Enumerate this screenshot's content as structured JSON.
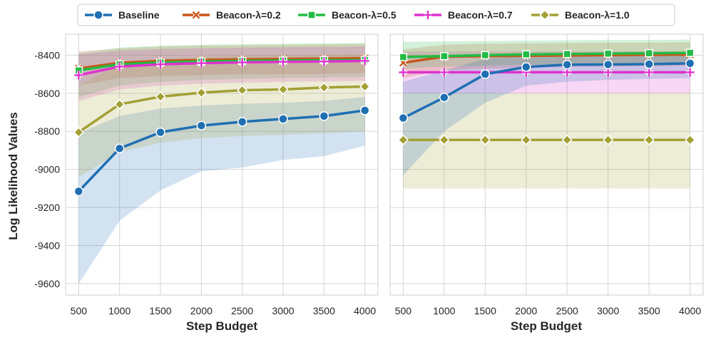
{
  "chart_data": {
    "type": "line",
    "ylabel": "Log Likelihood Values",
    "xlabel": "Step Budget",
    "x": [
      500,
      1000,
      1500,
      2000,
      2500,
      3000,
      3500,
      4000
    ],
    "x_ticks": [
      "500",
      "1000",
      "1500",
      "2000",
      "2500",
      "3000",
      "3500",
      "4000"
    ],
    "xlim": [
      340,
      4160
    ],
    "ylim": [
      -9660,
      -8290
    ],
    "y_ticks": [
      -8400,
      -8600,
      -8800,
      -9000,
      -9200,
      -9400,
      -9600
    ],
    "y_tick_labels": [
      "-8400",
      "-8600",
      "-8800",
      "-9000",
      "-9200",
      "-9400",
      "-9600"
    ],
    "grid": true,
    "legend": {
      "position": "top-center",
      "entries": [
        {
          "label": "Baseline",
          "marker": "circle",
          "color": "#1f6fb2"
        },
        {
          "label": "Beacon-λ=0.2",
          "marker": "x",
          "color": "#c8571b"
        },
        {
          "label": "Beacon-λ=0.5",
          "marker": "square",
          "color": "#22bb44"
        },
        {
          "label": "Beacon-λ=0.7",
          "marker": "plus",
          "color": "#dd33cc"
        },
        {
          "label": "Beacon-λ=1.0",
          "marker": "diamond",
          "color": "#a3a035"
        }
      ]
    },
    "panels": [
      {
        "name": "left",
        "series": [
          {
            "name": "Baseline",
            "color": "#1f6fb2",
            "marker": "circle",
            "values": [
              -9115,
              -8890,
              -8805,
              -8770,
              -8750,
              -8735,
              -8720,
              -8690
            ],
            "lower": [
              -9600,
              -9270,
              -9110,
              -9010,
              -8990,
              -8950,
              -8930,
              -8875
            ],
            "upper": [
              -8810,
              -8720,
              -8680,
              -8665,
              -8655,
              -8650,
              -8640,
              -8620
            ]
          },
          {
            "name": "Beacon-λ=0.2",
            "color": "#c8571b",
            "marker": "x",
            "values": [
              -8470,
              -8440,
              -8430,
              -8425,
              -8422,
              -8420,
              -8418,
              -8416
            ],
            "lower": [
              -8560,
              -8520,
              -8510,
              -8505,
              -8500,
              -8500,
              -8498,
              -8495
            ],
            "upper": [
              -8380,
              -8365,
              -8355,
              -8350,
              -8348,
              -8345,
              -8343,
              -8340
            ]
          },
          {
            "name": "Beacon-λ=0.5",
            "color": "#22bb44",
            "marker": "square",
            "values": [
              -8480,
              -8448,
              -8438,
              -8433,
              -8430,
              -8428,
              -8426,
              -8425
            ],
            "lower": [
              -8620,
              -8560,
              -8540,
              -8530,
              -8525,
              -8520,
              -8518,
              -8515
            ],
            "upper": [
              -8390,
              -8360,
              -8350,
              -8345,
              -8342,
              -8340,
              -8338,
              -8336
            ]
          },
          {
            "name": "Beacon-λ=0.7",
            "color": "#dd33cc",
            "marker": "plus",
            "values": [
              -8505,
              -8460,
              -8448,
              -8442,
              -8438,
              -8435,
              -8433,
              -8430
            ],
            "lower": [
              -8640,
              -8580,
              -8560,
              -8550,
              -8545,
              -8540,
              -8538,
              -8535
            ],
            "upper": [
              -8395,
              -8375,
              -8368,
              -8364,
              -8360,
              -8358,
              -8356,
              -8354
            ]
          },
          {
            "name": "Beacon-λ=1.0",
            "color": "#a3a035",
            "marker": "diamond",
            "values": [
              -8805,
              -8658,
              -8618,
              -8597,
              -8584,
              -8580,
              -8570,
              -8565
            ],
            "lower": [
              -9040,
              -8910,
              -8860,
              -8835,
              -8825,
              -8818,
              -8810,
              -8800
            ],
            "upper": [
              -8560,
              -8450,
              -8420,
              -8410,
              -8405,
              -8402,
              -8400,
              -8398
            ]
          }
        ]
      },
      {
        "name": "right",
        "series": [
          {
            "name": "Beacon-λ=1.0",
            "color": "#a3a035",
            "marker": "diamond",
            "values": [
              -8845,
              -8845,
              -8845,
              -8845,
              -8845,
              -8845,
              -8845,
              -8845
            ],
            "lower": [
              -9100,
              -9100,
              -9100,
              -9100,
              -9100,
              -9100,
              -9100,
              -9100
            ],
            "upper": [
              -8600,
              -8600,
              -8600,
              -8600,
              -8600,
              -8600,
              -8600,
              -8600
            ]
          },
          {
            "name": "Beacon-λ=0.7",
            "color": "#dd33cc",
            "marker": "plus",
            "values": [
              -8490,
              -8490,
              -8490,
              -8490,
              -8490,
              -8490,
              -8490,
              -8490
            ],
            "lower": [
              -8600,
              -8600,
              -8600,
              -8600,
              -8600,
              -8600,
              -8600,
              -8600
            ],
            "upper": [
              -8380,
              -8380,
              -8380,
              -8380,
              -8380,
              -8380,
              -8380,
              -8380
            ]
          },
          {
            "name": "Beacon-λ=0.2",
            "color": "#c8571b",
            "marker": "x",
            "values": [
              -8440,
              -8408,
              -8405,
              -8403,
              -8402,
              -8400,
              -8398,
              -8397
            ],
            "lower": [
              -8520,
              -8480,
              -8470,
              -8465,
              -8462,
              -8460,
              -8458,
              -8456
            ],
            "upper": [
              -8370,
              -8345,
              -8340,
              -8338,
              -8336,
              -8335,
              -8334,
              -8333
            ]
          },
          {
            "name": "Beacon-λ=0.5",
            "color": "#22bb44",
            "marker": "square",
            "values": [
              -8410,
              -8405,
              -8400,
              -8396,
              -8394,
              -8392,
              -8390,
              -8388
            ],
            "lower": [
              -8470,
              -8460,
              -8455,
              -8450,
              -8448,
              -8446,
              -8444,
              -8442
            ],
            "upper": [
              -8330,
              -8328,
              -8325,
              -8323,
              -8322,
              -8320,
              -8320,
              -8318
            ]
          },
          {
            "name": "Baseline",
            "color": "#1f6fb2",
            "marker": "circle",
            "values": [
              -8730,
              -8622,
              -8500,
              -8462,
              -8450,
              -8449,
              -8447,
              -8443
            ],
            "lower": [
              -9030,
              -8800,
              -8650,
              -8560,
              -8540,
              -8530,
              -8525,
              -8520
            ],
            "upper": [
              -8540,
              -8480,
              -8420,
              -8400,
              -8395,
              -8393,
              -8391,
              -8389
            ]
          }
        ]
      }
    ]
  }
}
